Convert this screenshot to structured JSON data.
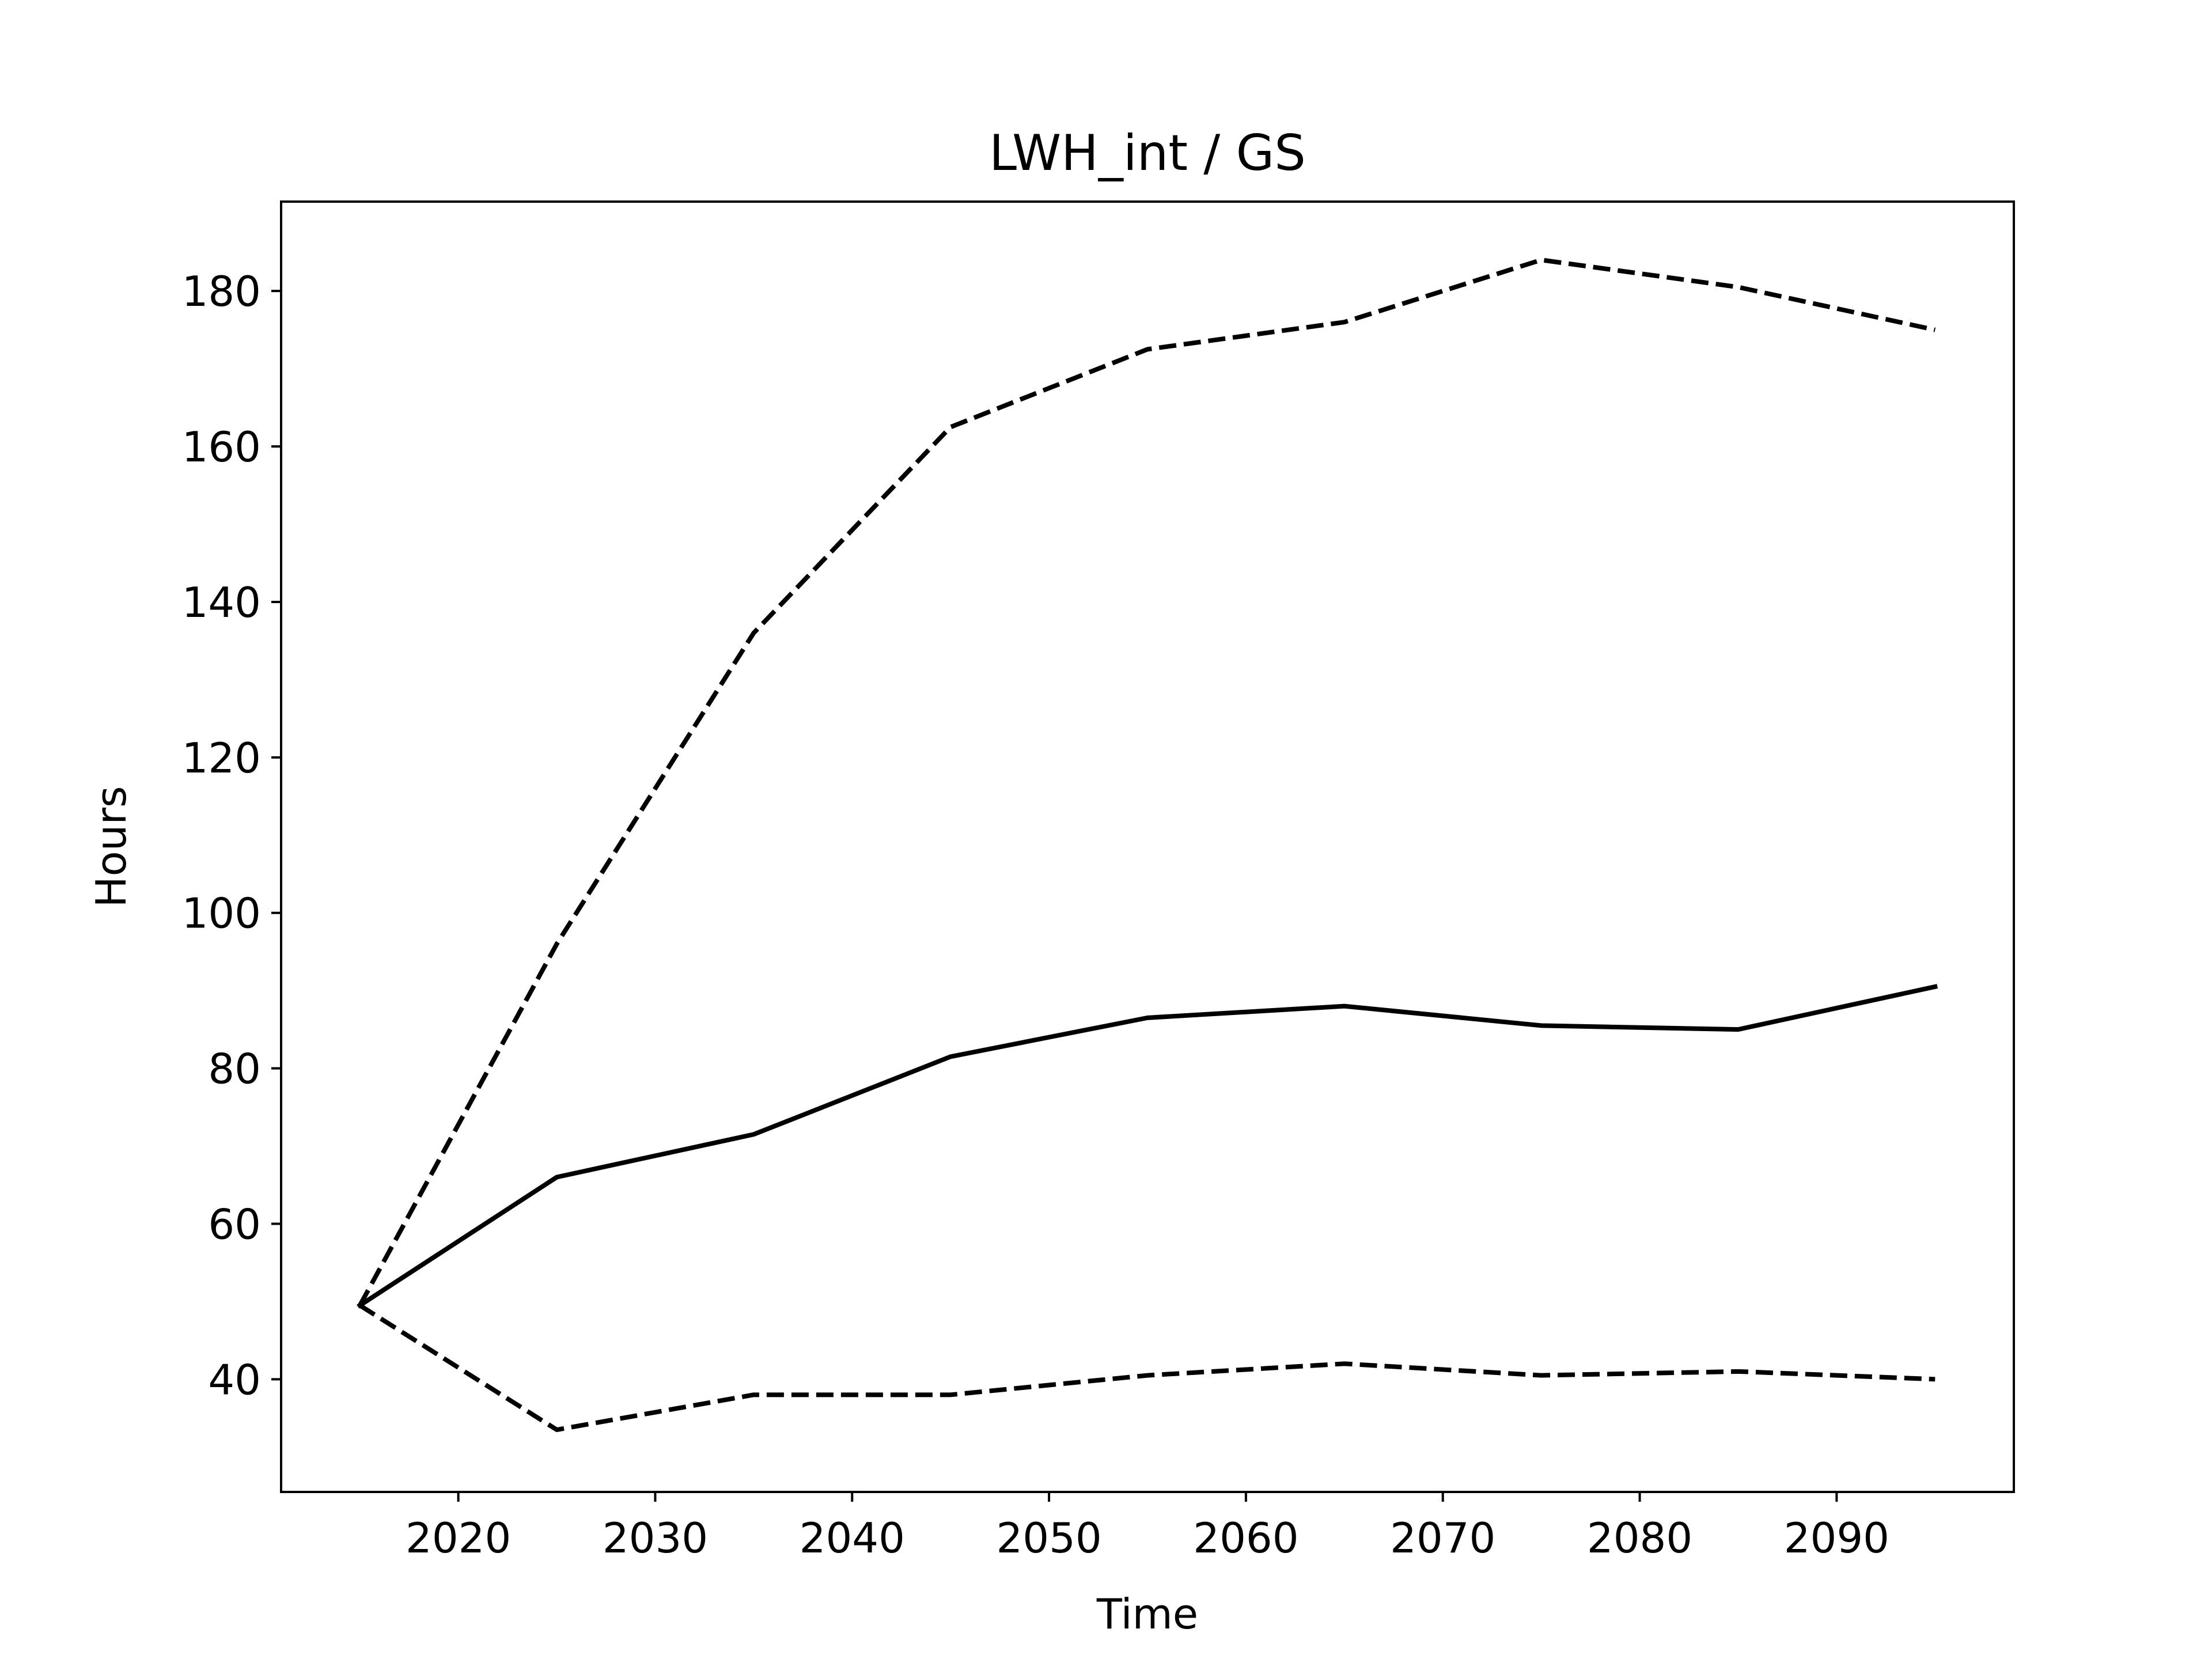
{
  "chart_data": {
    "type": "line",
    "title": "LWH_int / GS",
    "xlabel": "Time",
    "ylabel": "Hours",
    "xlim": [
      2011,
      2099
    ],
    "ylim": [
      25.5,
      191.5
    ],
    "xticks": [
      2020,
      2030,
      2040,
      2050,
      2060,
      2070,
      2080,
      2090
    ],
    "yticks": [
      40,
      60,
      80,
      100,
      120,
      140,
      160,
      180
    ],
    "grid": false,
    "legend": "none",
    "x": [
      2015,
      2025,
      2035,
      2045,
      2055,
      2065,
      2075,
      2085,
      2095
    ],
    "series": [
      {
        "style": "dashed",
        "color": "#000000",
        "values": [
          49.5,
          96,
          136,
          162.5,
          172.5,
          176,
          184,
          180.5,
          175
        ]
      },
      {
        "style": "solid",
        "color": "#000000",
        "values": [
          49.5,
          66,
          71.5,
          81.5,
          86.5,
          88,
          85.5,
          85,
          90.5
        ]
      },
      {
        "style": "dashed",
        "color": "#000000",
        "values": [
          49.5,
          33.5,
          38,
          38,
          40.5,
          42,
          40.5,
          41,
          40
        ]
      }
    ]
  }
}
